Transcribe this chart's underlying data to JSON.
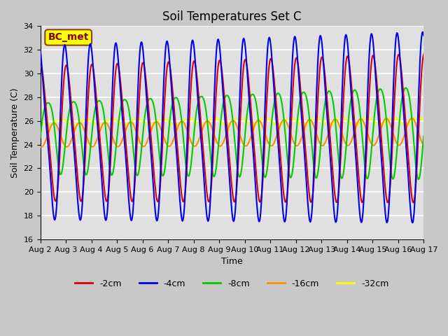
{
  "title": "Soil Temperatures Set C",
  "xlabel": "Time",
  "ylabel": "Soil Temperature (C)",
  "ylim": [
    16,
    34
  ],
  "yticks": [
    16,
    18,
    20,
    22,
    24,
    26,
    28,
    30,
    32,
    34
  ],
  "xlim": [
    0,
    15
  ],
  "xtick_labels": [
    "Aug 2",
    "Aug 3",
    "Aug 4",
    "Aug 5",
    "Aug 6",
    "Aug 7",
    "Aug 8",
    "Aug 9",
    "Aug 10",
    "Aug 11",
    "Aug 12",
    "Aug 13",
    "Aug 14",
    "Aug 15",
    "Aug 16",
    "Aug 17"
  ],
  "annotation_text": "BC_met",
  "annotation_bbox_facecolor": "#FFFF00",
  "annotation_bbox_edgecolor": "#8B4513",
  "annotation_text_color": "#8B0000",
  "series_colors": [
    "#DD0000",
    "#0000EE",
    "#00CC00",
    "#FF8C00",
    "#FFFF00"
  ],
  "series_labels": [
    "-2cm",
    "-4cm",
    "-8cm",
    "-16cm",
    "-32cm"
  ],
  "fig_facecolor": "#C8C8C8",
  "axes_facecolor": "#E0E0E0",
  "grid_color": "#FFFFFF",
  "title_fontsize": 12,
  "label_fontsize": 9,
  "tick_fontsize": 8,
  "legend_fontsize": 9
}
